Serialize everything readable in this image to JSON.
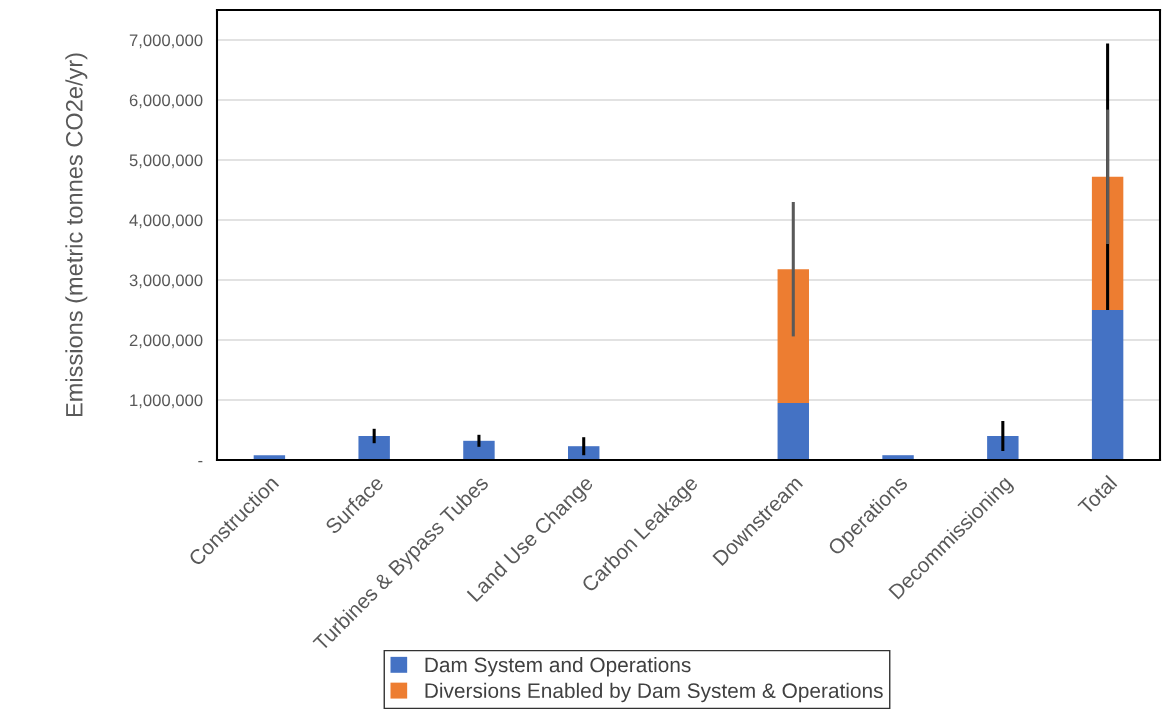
{
  "chart_data": {
    "type": "bar",
    "stacked": true,
    "ylabel": "Emissions (metric tonnes CO2e/yr)",
    "categories": [
      "Construction",
      "Surface",
      "Turbines & Bypass Tubes",
      "Land Use Change",
      "Carbon Leakage",
      "Downstream",
      "Operations",
      "Decommissioning",
      "Total"
    ],
    "series": [
      {
        "name": "Dam System and Operations",
        "color": "#4472c4",
        "values": [
          80000,
          400000,
          320000,
          230000,
          0,
          950000,
          80000,
          400000,
          2500000
        ],
        "errors": [
          null,
          120000,
          100000,
          150000,
          null,
          null,
          null,
          250000,
          [
            2500000,
            6940000
          ]
        ]
      },
      {
        "name": "Diversions Enabled by Dam System & Operations",
        "color": "#ed7d31",
        "values": [
          0,
          0,
          0,
          0,
          0,
          2230000,
          0,
          0,
          2220000
        ],
        "errors": [
          null,
          null,
          null,
          null,
          null,
          1120000,
          null,
          null,
          1120000
        ]
      }
    ],
    "ylim": [
      0,
      7500000
    ],
    "yticks": [
      {
        "value": 0,
        "label": "-"
      },
      {
        "value": 1000000,
        "label": "1,000,000"
      },
      {
        "value": 2000000,
        "label": "2,000,000"
      },
      {
        "value": 3000000,
        "label": "3,000,000"
      },
      {
        "value": 4000000,
        "label": "4,000,000"
      },
      {
        "value": 5000000,
        "label": "5,000,000"
      },
      {
        "value": 6000000,
        "label": "6,000,000"
      },
      {
        "value": 7000000,
        "label": "7,000,000"
      }
    ],
    "grid": "y",
    "legend": "bottom"
  }
}
